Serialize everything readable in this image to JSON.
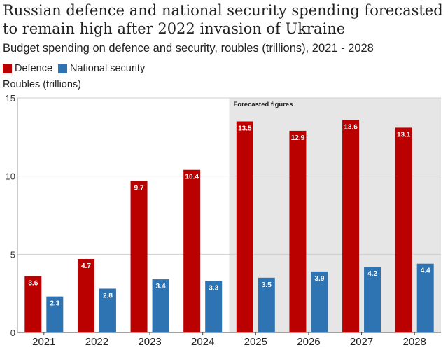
{
  "chart_data": {
    "type": "bar",
    "title": "Russian defence and national security spending forecasted to remain high after 2022 invasion of Ukraine",
    "subtitle": "Budget spending on defence and security, roubles (trillions), 2021 - 2028",
    "ylabel": "Roubles (trillions)",
    "xlabel": "",
    "categories": [
      "2021",
      "2022",
      "2023",
      "2024",
      "2025",
      "2026",
      "2027",
      "2028"
    ],
    "series": [
      {
        "name": "Defence",
        "color": "#bb0000",
        "values": [
          3.6,
          4.7,
          9.7,
          10.4,
          13.5,
          12.9,
          13.6,
          13.1
        ],
        "labels": [
          "3.6",
          "4.7",
          "9.7",
          "10.4",
          "13.5",
          "12.9",
          "13.6",
          "13.1"
        ]
      },
      {
        "name": "National security",
        "color": "#2e73b2",
        "values": [
          2.3,
          2.8,
          3.4,
          3.3,
          3.5,
          3.9,
          4.2,
          4.4
        ],
        "labels": [
          "2.3",
          "2.8",
          "3.4",
          "3.3",
          "3.5",
          "3.9",
          "4.2",
          "4.4"
        ]
      }
    ],
    "ylim": [
      0,
      15
    ],
    "yticks": [
      "0",
      "5",
      "10",
      "15"
    ],
    "forecast_region": {
      "label": "Forecasted figures",
      "from_category": "2025",
      "to_category": "2028",
      "color": "#e6e6e6"
    },
    "grid": true
  }
}
